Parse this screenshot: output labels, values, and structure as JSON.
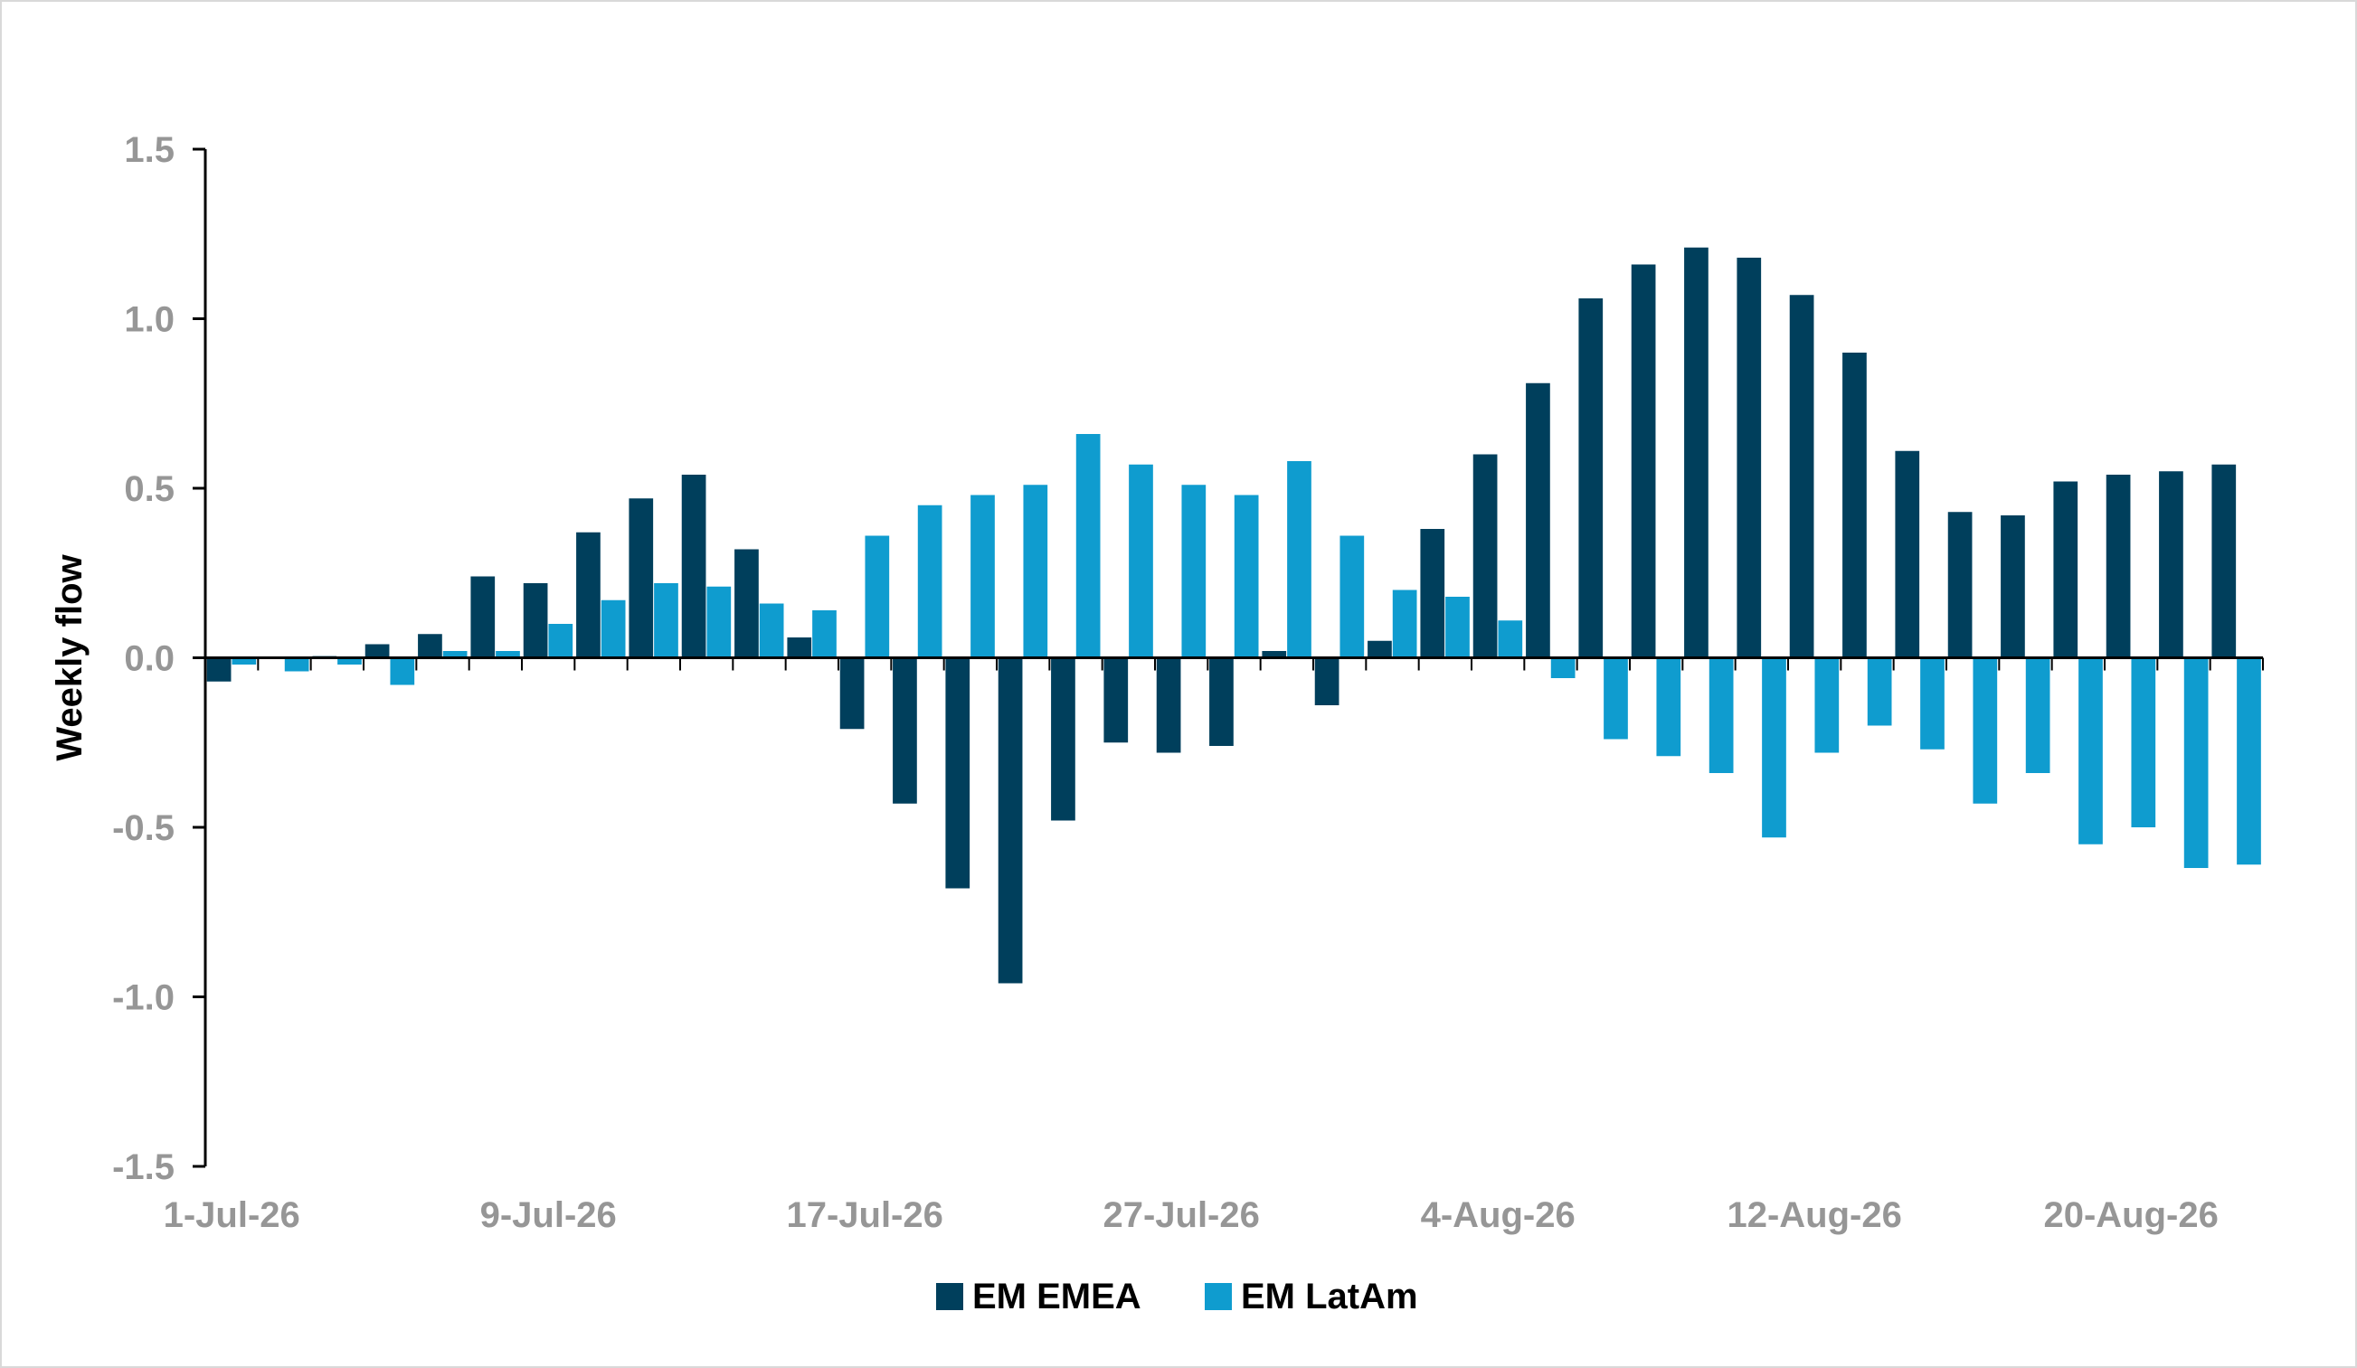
{
  "chart_data": {
    "type": "bar",
    "title": "",
    "ylabel": "Weekly flow",
    "xlabel": "",
    "ylim": [
      -1.5,
      1.5
    ],
    "yticks": [
      1.5,
      1.0,
      0.5,
      0.0,
      -0.5,
      -1.0,
      -1.5
    ],
    "ytick_labels": [
      "1.5",
      "1.0",
      "0.5",
      "0.0",
      "-0.5",
      "-1.0",
      "-1.5"
    ],
    "grid": false,
    "legend_position": "bottom",
    "xtick_labels": [
      {
        "index": 0,
        "label": "1-Jul-26"
      },
      {
        "index": 6,
        "label": "9-Jul-26"
      },
      {
        "index": 12,
        "label": "17-Jul-26"
      },
      {
        "index": 18,
        "label": "27-Jul-26"
      },
      {
        "index": 24,
        "label": "4-Aug-26"
      },
      {
        "index": 30,
        "label": "12-Aug-26"
      },
      {
        "index": 36,
        "label": "20-Aug-26"
      }
    ],
    "categories_count": 39,
    "series": [
      {
        "name": "EM EMEA",
        "color": "#003f5c",
        "values": [
          -0.07,
          0.0,
          0.005,
          0.04,
          0.07,
          0.24,
          0.22,
          0.37,
          0.47,
          0.54,
          0.32,
          0.06,
          -0.21,
          -0.43,
          -0.68,
          -0.96,
          -0.48,
          -0.25,
          -0.28,
          -0.26,
          0.02,
          -0.14,
          0.05,
          0.38,
          0.6,
          0.81,
          1.06,
          1.16,
          1.21,
          1.18,
          1.07,
          0.9,
          0.61,
          0.43,
          0.42,
          0.52,
          0.54,
          0.55,
          0.57
        ]
      },
      {
        "name": "EM LatAm",
        "color": "#0f9ccf",
        "values": [
          -0.02,
          -0.04,
          -0.02,
          -0.08,
          0.02,
          0.02,
          0.1,
          0.17,
          0.22,
          0.21,
          0.16,
          0.14,
          0.36,
          0.45,
          0.48,
          0.51,
          0.66,
          0.57,
          0.51,
          0.48,
          0.58,
          0.36,
          0.2,
          0.18,
          0.11,
          -0.06,
          -0.24,
          -0.29,
          -0.34,
          -0.53,
          -0.28,
          -0.2,
          -0.27,
          -0.43,
          -0.34,
          -0.55,
          -0.5,
          -0.62,
          -0.61
        ]
      }
    ]
  }
}
